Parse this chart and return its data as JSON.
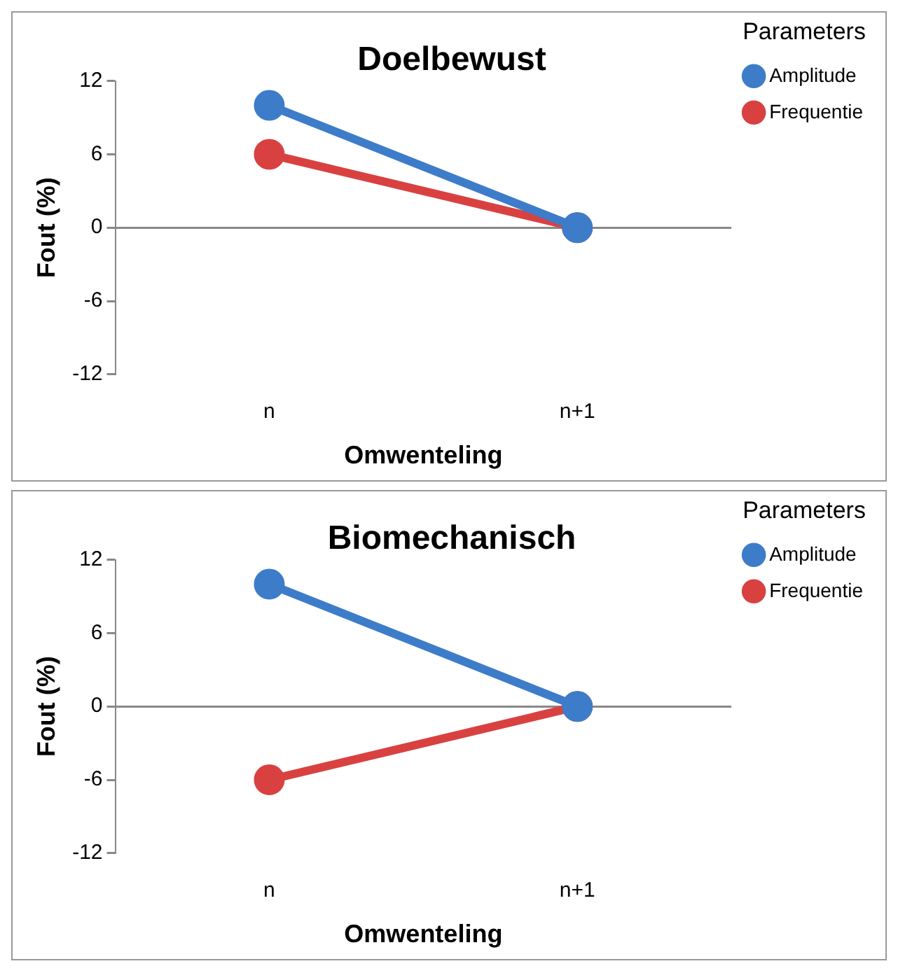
{
  "chart_data": [
    {
      "type": "line",
      "title": "Doelbewust",
      "xlabel": "Omwenteling",
      "ylabel": "Fout (%)",
      "legend_title": "Parameters",
      "legend": "top right",
      "marker": "circle",
      "categories": [
        "n",
        "n+1"
      ],
      "ylim": [
        -12,
        12
      ],
      "yticks": [
        -12,
        -6,
        0,
        6,
        12
      ],
      "series": [
        {
          "name": "Amplitude",
          "color": "#3d7cc9",
          "values": [
            10,
            0
          ]
        },
        {
          "name": "Frequentie",
          "color": "#d94141",
          "values": [
            6,
            0
          ]
        }
      ]
    },
    {
      "type": "line",
      "title": "Biomechanisch",
      "xlabel": "Omwenteling",
      "ylabel": "Fout (%)",
      "legend_title": "Parameters",
      "legend": "top right",
      "marker": "circle",
      "categories": [
        "n",
        "n+1"
      ],
      "ylim": [
        -12,
        12
      ],
      "yticks": [
        -12,
        -6,
        0,
        6,
        12
      ],
      "series": [
        {
          "name": "Amplitude",
          "color": "#3d7cc9",
          "values": [
            10,
            0
          ]
        },
        {
          "name": "Frequentie",
          "color": "#d94141",
          "values": [
            -6,
            0
          ]
        }
      ]
    }
  ]
}
